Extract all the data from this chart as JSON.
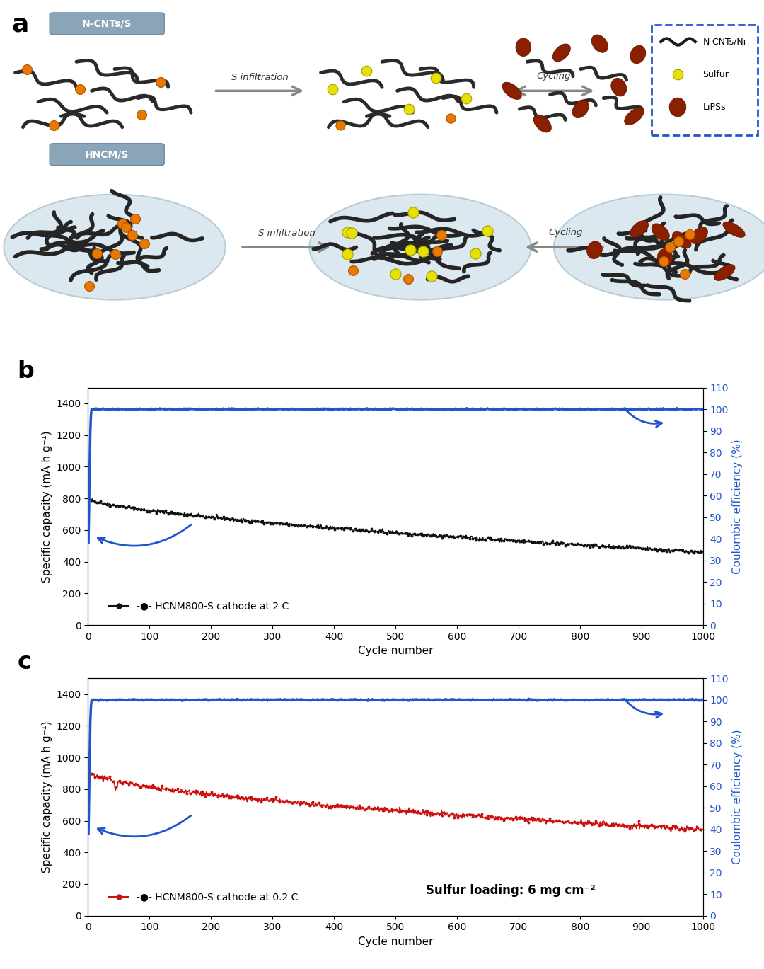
{
  "fig_width": 10.8,
  "fig_height": 13.69,
  "panel_a_bg": "#eaf0f8",
  "panel_border_color": "#1a5fb4",
  "panel_b_ylabel": "Specific capacity (mA h g⁻¹)",
  "panel_b_ylabel2": "Coulombic efficiency (%)",
  "panel_b_xlabel": "Cycle number",
  "panel_b_legend": "-●- HCNM800-S cathode at 2 C",
  "panel_c_ylabel": "Specific capacity (mA h g⁻¹)",
  "panel_c_ylabel2": "Coulombic efficiency (%)",
  "panel_c_xlabel": "Cycle number",
  "panel_c_legend": "-●- HCNM800-S cathode at 0.2 C",
  "panel_c_annotation": "Sulfur loading: 6 mg cm⁻²",
  "ylim": [
    0,
    1500
  ],
  "ylim2": [
    0,
    110
  ],
  "xlim": [
    0,
    1000
  ],
  "yticks": [
    0,
    200,
    400,
    600,
    800,
    1000,
    1200,
    1400
  ],
  "yticks2": [
    0,
    10,
    20,
    30,
    40,
    50,
    60,
    70,
    80,
    90,
    100,
    110
  ],
  "xticks": [
    0,
    100,
    200,
    300,
    400,
    500,
    600,
    700,
    800,
    900,
    1000
  ],
  "black_color": "#111111",
  "blue_color": "#2255cc",
  "red_color": "#cc1111",
  "cnt_color": "#2a2a2a",
  "circle_bg": "#dde8f0",
  "circle_edge": "#c0d0e0",
  "orange_dot": "#e87800",
  "yellow_dot": "#e8e000",
  "brown_oval": "#8B2000"
}
